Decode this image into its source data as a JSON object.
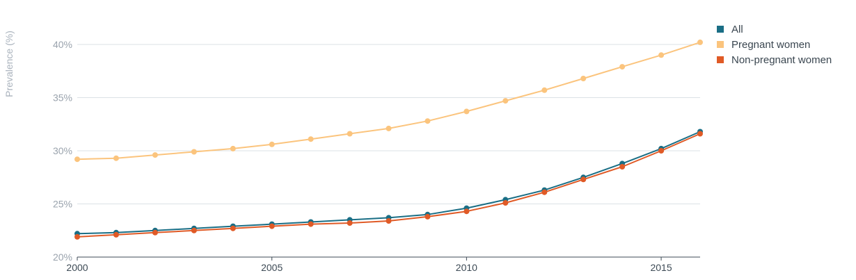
{
  "chart_data": {
    "type": "line",
    "title": "",
    "xlabel": "",
    "ylabel": "Prevalence (%)",
    "xlim": [
      2000,
      2016
    ],
    "ylim": [
      20,
      42
    ],
    "x_ticks": [
      2000,
      2005,
      2010,
      2015
    ],
    "x_tick_labels": [
      "2000",
      "2005",
      "2010",
      "2015"
    ],
    "y_ticks": [
      20,
      25,
      30,
      35,
      40
    ],
    "y_tick_labels": [
      "20%",
      "25%",
      "30%",
      "35%",
      "40%"
    ],
    "grid": true,
    "legend_position": "top-right",
    "x": [
      2000,
      2001,
      2002,
      2003,
      2004,
      2005,
      2006,
      2007,
      2008,
      2009,
      2010,
      2011,
      2012,
      2013,
      2014,
      2015,
      2016
    ],
    "series": [
      {
        "name": "All",
        "color": "#1a6e85",
        "values": [
          22.2,
          22.3,
          22.5,
          22.7,
          22.9,
          23.1,
          23.3,
          23.5,
          23.7,
          24.0,
          24.6,
          25.4,
          26.3,
          27.5,
          28.8,
          30.2,
          31.8
        ]
      },
      {
        "name": "Pregnant women",
        "color": "#fbc47d",
        "values": [
          29.2,
          29.3,
          29.6,
          29.9,
          30.2,
          30.6,
          31.1,
          31.6,
          32.1,
          32.8,
          33.7,
          34.7,
          35.7,
          36.8,
          37.9,
          39.0,
          40.2
        ]
      },
      {
        "name": "Non-pregnant women",
        "color": "#e05a26",
        "values": [
          21.9,
          22.1,
          22.3,
          22.5,
          22.7,
          22.9,
          23.1,
          23.2,
          23.4,
          23.8,
          24.3,
          25.1,
          26.1,
          27.3,
          28.5,
          30.0,
          31.6
        ]
      }
    ]
  },
  "colors": {
    "grid": "#dbe1e5",
    "axis": "#3d4a55"
  }
}
